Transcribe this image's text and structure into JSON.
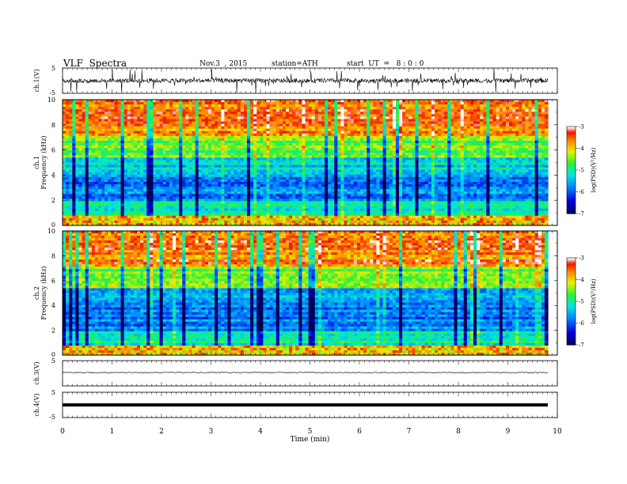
{
  "header": {
    "title": "VLF  Spectra",
    "date": "Nov.3  , 2015",
    "station": "station=ATH",
    "start": "start  UT  =   8 : 0 : 0"
  },
  "chart_data": [
    {
      "type": "line",
      "panel": "ch1-waveform",
      "ylabel": "ch.1(V)",
      "ylim": [
        -5,
        5
      ],
      "ytick_labels": [
        "5",
        "-5"
      ],
      "x_range_min": [
        0,
        9.8
      ],
      "description_visible": "noisy waveform centered near 0 V with spikes to about ±5 V"
    },
    {
      "type": "heatmap",
      "panel": "ch1-spectrogram",
      "ylabel": "ch.1\nFrequency  (kHz)",
      "ylim": [
        0,
        10
      ],
      "ytick_labels": [
        "0",
        "2",
        "4",
        "6",
        "8",
        "10"
      ],
      "colorbar": {
        "label": "log(PSD)(V²/Hz)",
        "range": [
          -7,
          -3
        ],
        "tick_labels": [
          "-3",
          "-4",
          "-5",
          "-6",
          "-7"
        ]
      }
    },
    {
      "type": "heatmap",
      "panel": "ch2-spectrogram",
      "ylabel": "ch.2\nFrequency  (kHz)",
      "ylim": [
        0,
        10
      ],
      "ytick_labels": [
        "0",
        "2",
        "4",
        "6",
        "8",
        "10"
      ],
      "colorbar": {
        "label": "log(PSD)(V²/Hz)",
        "range": [
          -7,
          -3
        ],
        "tick_labels": [
          "-3",
          "-4",
          "-5",
          "-6",
          "-7"
        ]
      }
    },
    {
      "type": "line",
      "panel": "ch3-waveform",
      "ylabel": "ch.3(V)",
      "ylim": [
        -5,
        5
      ],
      "ytick_labels": [
        "5"
      ],
      "level": 0
    },
    {
      "type": "line",
      "panel": "ch4-waveform",
      "ylabel": "ch.4(V)",
      "ylim": [
        -5,
        5
      ],
      "ytick_labels": [
        "5",
        "-5"
      ],
      "level": 0
    }
  ],
  "xaxis": {
    "label": "Time  (min)",
    "range": [
      0,
      10
    ],
    "tick_labels": [
      "0",
      "1",
      "2",
      "3",
      "4",
      "5",
      "6",
      "7",
      "8",
      "9",
      "10"
    ]
  },
  "colors": {
    "ink": "#000000"
  }
}
